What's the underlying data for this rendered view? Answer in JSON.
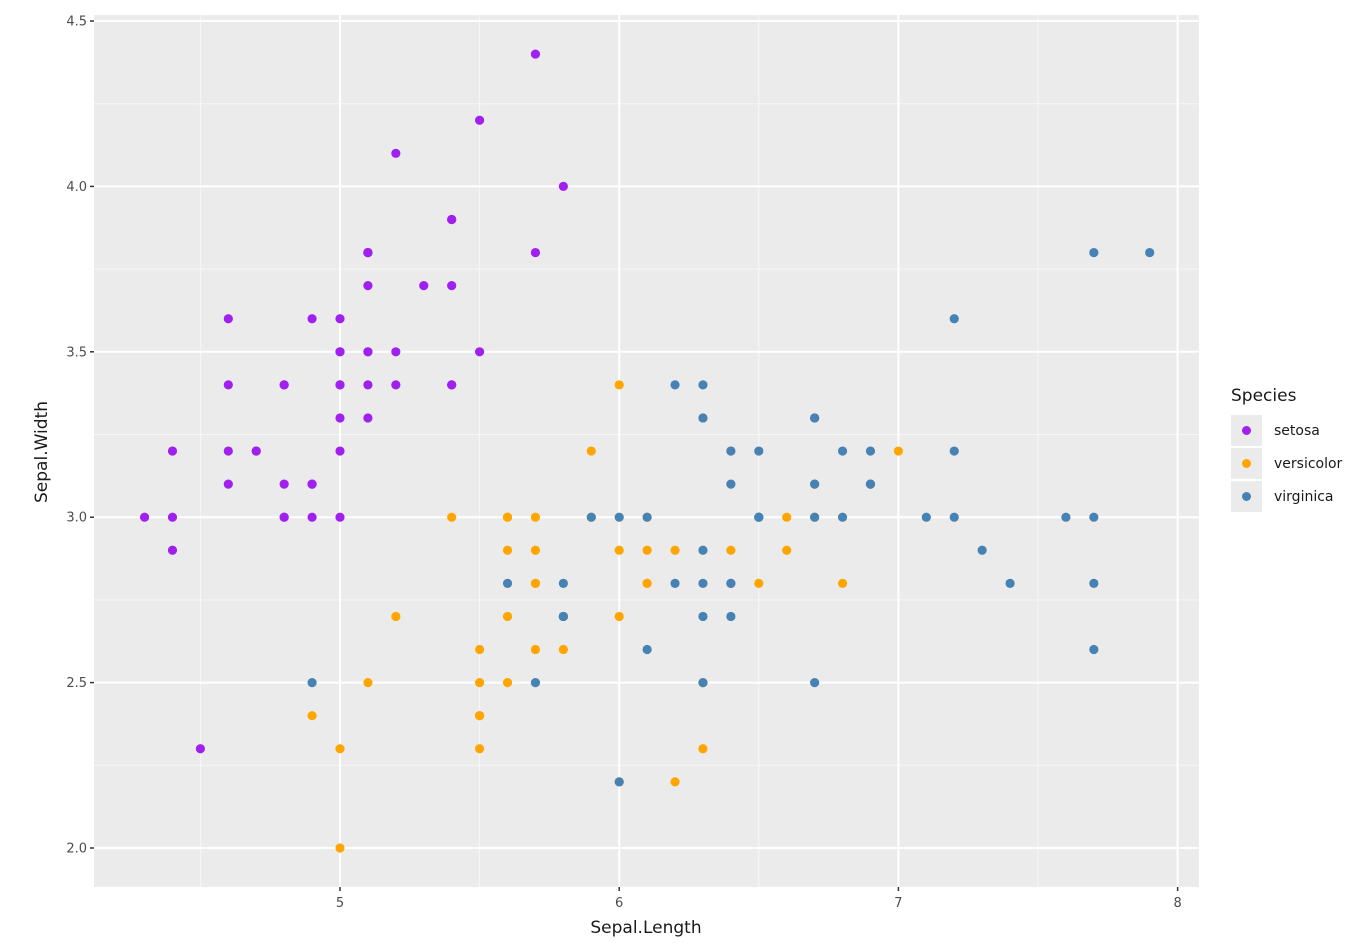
{
  "chart_data": {
    "type": "scatter",
    "title": "",
    "xlabel": "Sepal.Length",
    "ylabel": "Sepal.Width",
    "xlim": [
      4.12,
      8.08
    ],
    "ylim": [
      1.88,
      4.52
    ],
    "x_ticks": [
      5,
      6,
      7,
      8
    ],
    "x_tick_labels": [
      "5",
      "6",
      "7",
      "8"
    ],
    "y_ticks": [
      2.0,
      2.5,
      3.0,
      3.5,
      4.0,
      4.5
    ],
    "y_tick_labels": [
      "2.0",
      "2.5",
      "3.0",
      "3.5",
      "4.0",
      "4.5"
    ],
    "grid": true,
    "legend_title": "Species",
    "legend_position": "right",
    "series": [
      {
        "name": "setosa",
        "color": "#A020F0",
        "points": [
          [
            5.1,
            3.5
          ],
          [
            4.9,
            3.0
          ],
          [
            4.7,
            3.2
          ],
          [
            4.6,
            3.1
          ],
          [
            5.0,
            3.6
          ],
          [
            5.4,
            3.9
          ],
          [
            4.6,
            3.4
          ],
          [
            5.0,
            3.4
          ],
          [
            4.4,
            2.9
          ],
          [
            4.9,
            3.1
          ],
          [
            5.4,
            3.7
          ],
          [
            4.8,
            3.4
          ],
          [
            4.8,
            3.0
          ],
          [
            4.3,
            3.0
          ],
          [
            5.8,
            4.0
          ],
          [
            5.7,
            4.4
          ],
          [
            5.4,
            3.9
          ],
          [
            5.1,
            3.5
          ],
          [
            5.7,
            3.8
          ],
          [
            5.1,
            3.8
          ],
          [
            5.4,
            3.4
          ],
          [
            5.1,
            3.7
          ],
          [
            4.6,
            3.6
          ],
          [
            5.1,
            3.3
          ],
          [
            4.8,
            3.4
          ],
          [
            5.0,
            3.0
          ],
          [
            5.0,
            3.4
          ],
          [
            5.2,
            3.5
          ],
          [
            5.2,
            3.4
          ],
          [
            4.7,
            3.2
          ],
          [
            4.8,
            3.1
          ],
          [
            5.4,
            3.4
          ],
          [
            5.2,
            4.1
          ],
          [
            5.5,
            4.2
          ],
          [
            4.9,
            3.1
          ],
          [
            5.0,
            3.2
          ],
          [
            5.5,
            3.5
          ],
          [
            4.9,
            3.6
          ],
          [
            4.4,
            3.0
          ],
          [
            5.1,
            3.4
          ],
          [
            5.0,
            3.5
          ],
          [
            4.5,
            2.3
          ],
          [
            4.4,
            3.2
          ],
          [
            5.0,
            3.5
          ],
          [
            5.1,
            3.8
          ],
          [
            4.8,
            3.0
          ],
          [
            5.1,
            3.8
          ],
          [
            4.6,
            3.2
          ],
          [
            5.3,
            3.7
          ],
          [
            5.0,
            3.3
          ]
        ]
      },
      {
        "name": "versicolor",
        "color": "#FFA500",
        "points": [
          [
            7.0,
            3.2
          ],
          [
            6.4,
            3.2
          ],
          [
            6.9,
            3.1
          ],
          [
            5.5,
            2.3
          ],
          [
            6.5,
            2.8
          ],
          [
            5.7,
            2.8
          ],
          [
            6.3,
            3.3
          ],
          [
            4.9,
            2.4
          ],
          [
            6.6,
            2.9
          ],
          [
            5.2,
            2.7
          ],
          [
            5.0,
            2.0
          ],
          [
            5.9,
            3.0
          ],
          [
            6.0,
            2.2
          ],
          [
            6.1,
            2.9
          ],
          [
            5.6,
            2.9
          ],
          [
            6.7,
            3.1
          ],
          [
            5.6,
            3.0
          ],
          [
            5.8,
            2.7
          ],
          [
            6.2,
            2.2
          ],
          [
            5.6,
            2.5
          ],
          [
            5.9,
            3.2
          ],
          [
            6.1,
            2.8
          ],
          [
            6.3,
            2.5
          ],
          [
            6.1,
            2.8
          ],
          [
            6.4,
            2.9
          ],
          [
            6.6,
            3.0
          ],
          [
            6.8,
            2.8
          ],
          [
            6.7,
            3.0
          ],
          [
            6.0,
            2.9
          ],
          [
            5.7,
            2.6
          ],
          [
            5.5,
            2.4
          ],
          [
            5.5,
            2.4
          ],
          [
            5.8,
            2.7
          ],
          [
            6.0,
            2.7
          ],
          [
            5.4,
            3.0
          ],
          [
            6.0,
            3.4
          ],
          [
            6.7,
            3.1
          ],
          [
            6.3,
            2.3
          ],
          [
            5.6,
            3.0
          ],
          [
            5.5,
            2.5
          ],
          [
            5.5,
            2.6
          ],
          [
            6.1,
            3.0
          ],
          [
            5.8,
            2.6
          ],
          [
            5.0,
            2.3
          ],
          [
            5.6,
            2.7
          ],
          [
            5.7,
            3.0
          ],
          [
            5.7,
            2.9
          ],
          [
            6.2,
            2.9
          ],
          [
            5.1,
            2.5
          ],
          [
            5.7,
            2.8
          ]
        ]
      },
      {
        "name": "virginica",
        "color": "#4682B4",
        "points": [
          [
            6.3,
            3.3
          ],
          [
            5.8,
            2.7
          ],
          [
            7.1,
            3.0
          ],
          [
            6.3,
            2.9
          ],
          [
            6.5,
            3.0
          ],
          [
            7.6,
            3.0
          ],
          [
            4.9,
            2.5
          ],
          [
            7.3,
            2.9
          ],
          [
            6.7,
            2.5
          ],
          [
            7.2,
            3.6
          ],
          [
            6.5,
            3.2
          ],
          [
            6.4,
            2.7
          ],
          [
            6.8,
            3.0
          ],
          [
            5.7,
            2.5
          ],
          [
            5.8,
            2.8
          ],
          [
            6.4,
            3.2
          ],
          [
            6.5,
            3.0
          ],
          [
            7.7,
            3.8
          ],
          [
            7.7,
            2.6
          ],
          [
            6.0,
            2.2
          ],
          [
            6.9,
            3.2
          ],
          [
            5.6,
            2.8
          ],
          [
            7.7,
            2.8
          ],
          [
            6.3,
            2.7
          ],
          [
            6.7,
            3.3
          ],
          [
            7.2,
            3.2
          ],
          [
            6.2,
            2.8
          ],
          [
            6.1,
            3.0
          ],
          [
            6.4,
            2.8
          ],
          [
            7.2,
            3.0
          ],
          [
            7.4,
            2.8
          ],
          [
            7.9,
            3.8
          ],
          [
            6.4,
            2.8
          ],
          [
            6.3,
            2.8
          ],
          [
            6.1,
            2.6
          ],
          [
            7.7,
            3.0
          ],
          [
            6.3,
            3.4
          ],
          [
            6.4,
            3.1
          ],
          [
            6.0,
            3.0
          ],
          [
            6.9,
            3.1
          ],
          [
            6.7,
            3.1
          ],
          [
            6.9,
            3.1
          ],
          [
            5.8,
            2.7
          ],
          [
            6.8,
            3.2
          ],
          [
            6.7,
            3.3
          ],
          [
            6.7,
            3.0
          ],
          [
            6.3,
            2.5
          ],
          [
            6.5,
            3.0
          ],
          [
            6.2,
            3.4
          ],
          [
            5.9,
            3.0
          ]
        ]
      }
    ]
  },
  "legend": {
    "title": "Species",
    "items": [
      {
        "label": "setosa",
        "color": "#A020F0"
      },
      {
        "label": "versicolor",
        "color": "#FFA500"
      },
      {
        "label": "virginica",
        "color": "#4682B4"
      }
    ]
  }
}
